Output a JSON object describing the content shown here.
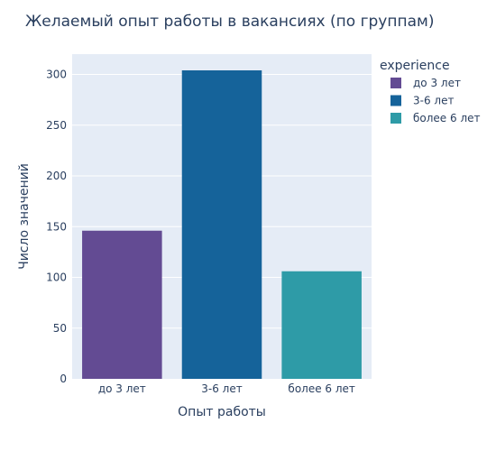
{
  "chart_data": {
    "type": "bar",
    "title": "Желаемый опыт работы в вакансиях (по группам)",
    "xlabel": "Опыт работы",
    "ylabel": "Число значений",
    "categories": [
      "до 3 лет",
      "3-6 лет",
      "более 6 лет"
    ],
    "values": [
      146,
      304,
      106
    ],
    "colors": [
      "#634b93",
      "#15639a",
      "#2e9ba7"
    ],
    "ylim": [
      0,
      320
    ],
    "yticks": [
      0,
      50,
      100,
      150,
      200,
      250,
      300
    ],
    "grid": true,
    "legend": {
      "title": "experience",
      "position": "top-right",
      "items": [
        "до 3 лет",
        "3-6 лет",
        "более 6 лет"
      ]
    }
  },
  "colors": {
    "plot_background": "#e5ecf6",
    "grid": "#ffffff",
    "text": "#2a3f5f"
  }
}
